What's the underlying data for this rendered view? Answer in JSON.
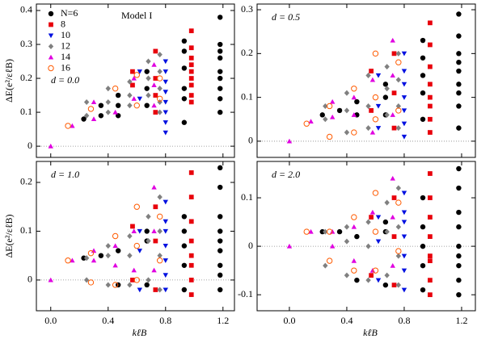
{
  "chart_data": [
    {
      "type": "scatter",
      "title": "Model I",
      "panel_label": "d = 0.0",
      "y_label": "ΔE(e²/εℓB)",
      "legend": "upper left",
      "zero_line": true,
      "show_xtick_labels": false,
      "xlim": [
        -0.1,
        1.28
      ],
      "ylim": [
        -0.033,
        0.419
      ],
      "xticks": [
        0,
        0.4,
        0.8,
        1.2
      ],
      "yticks": [
        0,
        0.1,
        0.2,
        0.3,
        0.4
      ],
      "series": [
        {
          "name": "N=6",
          "color": "#000000",
          "marker": "circle",
          "x": [
            0.23,
            0.35,
            0.35,
            0.47,
            0.47,
            0.47,
            0.67,
            0.67,
            0.67,
            0.93,
            0.93,
            0.93,
            0.93,
            0.93,
            0.93,
            1.18,
            1.18,
            1.18,
            1.18,
            1.18,
            1.18,
            1.18,
            1.18,
            1.18
          ],
          "values": [
            0.08,
            0.12,
            0.09,
            0.15,
            0.12,
            0.09,
            0.22,
            0.17,
            0.12,
            0.31,
            0.28,
            0.23,
            0.17,
            0.14,
            0.07,
            0.38,
            0.3,
            0.28,
            0.26,
            0.22,
            0.2,
            0.17,
            0.14,
            0.1
          ]
        },
        {
          "name": "8",
          "color": "#e8000b",
          "marker": "square",
          "x": [
            0.57,
            0.57,
            0.73,
            0.73,
            0.73,
            0.73,
            0.98,
            0.98,
            0.98,
            0.98,
            0.98,
            0.98,
            0.98,
            0.98,
            0.98
          ],
          "values": [
            0.22,
            0.18,
            0.28,
            0.2,
            0.15,
            0.1,
            0.34,
            0.29,
            0.26,
            0.24,
            0.22,
            0.2,
            0.18,
            0.15,
            0.13
          ]
        },
        {
          "name": "10",
          "color": "#0010e0",
          "marker": "triangle-down",
          "x": [
            0.62,
            0.62,
            0.8,
            0.8,
            0.8,
            0.8,
            0.8,
            0.8,
            0.8,
            0.8
          ],
          "values": [
            0.22,
            0.14,
            0.25,
            0.22,
            0.19,
            0.16,
            0.13,
            0.1,
            0.07,
            0.04
          ]
        },
        {
          "name": "12",
          "color": "#808080",
          "marker": "diamond",
          "x": [
            0.25,
            0.25,
            0.4,
            0.4,
            0.4,
            0.55,
            0.55,
            0.55,
            0.68,
            0.68,
            0.68,
            0.76,
            0.76,
            0.76,
            0.76,
            0.76
          ],
          "values": [
            0.13,
            0.09,
            0.17,
            0.13,
            0.1,
            0.19,
            0.15,
            0.12,
            0.25,
            0.2,
            0.15,
            0.27,
            0.22,
            0.17,
            0.13,
            0.1
          ]
        },
        {
          "name": "14",
          "color": "#e000e0",
          "marker": "triangle-up",
          "x": [
            0,
            0.15,
            0.3,
            0.3,
            0.45,
            0.58,
            0.58,
            0.72,
            0.72,
            0.72
          ],
          "values": [
            0,
            0.06,
            0.13,
            0.08,
            0.1,
            0.2,
            0.14,
            0.24,
            0.18,
            0.12
          ]
        },
        {
          "name": "16",
          "color": "#ff5a00",
          "marker": "open-circle",
          "x": [
            0.12,
            0.28,
            0.45,
            0.6,
            0.6,
            0.76,
            0.76
          ],
          "values": [
            0.06,
            0.11,
            0.17,
            0.21,
            0.12,
            0.2,
            0.14
          ]
        }
      ]
    },
    {
      "type": "scatter",
      "panel_label": "d = 0.5",
      "zero_line": true,
      "show_xtick_labels": false,
      "xlim": [
        -0.225,
        1.296
      ],
      "ylim": [
        -0.037,
        0.313
      ],
      "xticks": [
        0,
        0.4,
        0.8,
        1.2
      ],
      "yticks": [
        0,
        0.1,
        0.2,
        0.3
      ],
      "series": [
        {
          "color": "#000000",
          "marker": "circle",
          "x": [
            0.23,
            0.35,
            0.47,
            0.47,
            0.67,
            0.67,
            0.67,
            0.93,
            0.93,
            0.93,
            0.93,
            0.93,
            1.18,
            1.18,
            1.18,
            1.18,
            1.18,
            1.18,
            1.18,
            1.18,
            1.18
          ],
          "values": [
            0.06,
            0.07,
            0.09,
            0.06,
            0.13,
            0.1,
            0.06,
            0.23,
            0.19,
            0.15,
            0.11,
            0.05,
            0.29,
            0.24,
            0.2,
            0.18,
            0.16,
            0.13,
            0.11,
            0.08,
            0.03
          ]
        },
        {
          "color": "#e8000b",
          "marker": "square",
          "x": [
            0.57,
            0.57,
            0.73,
            0.73,
            0.73,
            0.98,
            0.98,
            0.98,
            0.98,
            0.98,
            0.98,
            0.98,
            0.98
          ],
          "values": [
            0.16,
            0.07,
            0.2,
            0.11,
            0.03,
            0.27,
            0.22,
            0.17,
            0.13,
            0.1,
            0.08,
            0.05,
            0.02
          ]
        },
        {
          "color": "#0010e0",
          "marker": "triangle-down",
          "x": [
            0.62,
            0.62,
            0.62,
            0.8,
            0.8,
            0.8,
            0.8,
            0.8,
            0.8,
            0.8
          ],
          "values": [
            0.15,
            0.08,
            0.03,
            0.2,
            0.16,
            0.13,
            0.1,
            0.07,
            0.04,
            0.01
          ]
        },
        {
          "color": "#808080",
          "marker": "diamond",
          "x": [
            0.25,
            0.25,
            0.4,
            0.4,
            0.4,
            0.55,
            0.55,
            0.55,
            0.68,
            0.68,
            0.68,
            0.76,
            0.76,
            0.76,
            0.76
          ],
          "values": [
            0.08,
            0.05,
            0.11,
            0.07,
            0.02,
            0.15,
            0.08,
            0.03,
            0.17,
            0.12,
            0.06,
            0.2,
            0.14,
            0.08,
            0.03
          ]
        },
        {
          "color": "#e000e0",
          "marker": "triangle-up",
          "x": [
            0,
            0.15,
            0.3,
            0.3,
            0.45,
            0.45,
            0.58,
            0.58,
            0.72,
            0.72,
            0.72
          ],
          "values": [
            0,
            0.045,
            0.09,
            0.055,
            0.1,
            0.06,
            0.14,
            0.02,
            0.23,
            0.15,
            0.06
          ]
        },
        {
          "color": "#ff5a00",
          "marker": "open-circle",
          "x": [
            0.12,
            0.28,
            0.28,
            0.45,
            0.45,
            0.6,
            0.6,
            0.6,
            0.76,
            0.76
          ],
          "values": [
            0.04,
            0.08,
            0.01,
            0.12,
            0.02,
            0.2,
            0.1,
            0.05,
            0.18,
            0.07
          ]
        }
      ]
    },
    {
      "type": "scatter",
      "panel_label": "d = 1.0",
      "y_label": "ΔE(e²/εℓB)",
      "x_label": "kℓB",
      "zero_line": true,
      "show_xtick_labels": true,
      "xlim": [
        -0.1,
        1.28
      ],
      "ylim": [
        -0.063,
        0.243
      ],
      "xticks": [
        {
          "value": 0,
          "label": "0.0"
        },
        0.4,
        0.8,
        1.2
      ],
      "yticks": [
        0,
        0.1,
        0.2
      ],
      "series": [
        {
          "color": "#000000",
          "marker": "circle",
          "x": [
            0.23,
            0.35,
            0.47,
            0.47,
            0.67,
            0.67,
            0.67,
            0.93,
            0.93,
            0.93,
            0.93,
            0.93,
            1.18,
            1.18,
            1.18,
            1.18,
            1.18,
            1.18,
            1.18,
            1.18,
            1.18
          ],
          "values": [
            0.045,
            0.05,
            0.06,
            -0.01,
            0.1,
            0.08,
            -0.01,
            0.13,
            0.1,
            0.07,
            0.03,
            -0.02,
            0.23,
            0.19,
            0.13,
            0.1,
            0.08,
            0.06,
            0.03,
            0.01,
            -0.02
          ]
        },
        {
          "color": "#e8000b",
          "marker": "square",
          "x": [
            0.57,
            0.57,
            0.73,
            0.73,
            0.73,
            0.98,
            0.98,
            0.98,
            0.98,
            0.98,
            0.98,
            0.98,
            0.98
          ],
          "values": [
            0.11,
            0,
            0.15,
            0.08,
            -0.02,
            0.22,
            0.17,
            0.12,
            0.08,
            0.05,
            0.03,
            0,
            -0.03
          ]
        },
        {
          "color": "#0010e0",
          "marker": "triangle-down",
          "x": [
            0.62,
            0.62,
            0.62,
            0.8,
            0.8,
            0.8,
            0.8,
            0.8,
            0.8,
            0.8
          ],
          "values": [
            0.1,
            0.06,
            -0.02,
            0.16,
            0.12,
            0.1,
            0.07,
            0.04,
            0.01,
            -0.02
          ]
        },
        {
          "color": "#808080",
          "marker": "diamond",
          "x": [
            0.25,
            0.25,
            0.4,
            0.4,
            0.4,
            0.55,
            0.55,
            0.55,
            0.68,
            0.68,
            0.68,
            0.76,
            0.76,
            0.76,
            0.76
          ],
          "values": [
            0.045,
            0,
            0.07,
            0.05,
            -0.01,
            0.09,
            0.05,
            -0.01,
            0.13,
            0.08,
            0,
            0.17,
            0.1,
            0.05,
            -0.02
          ]
        },
        {
          "color": "#e000e0",
          "marker": "triangle-up",
          "x": [
            0,
            0.15,
            0.3,
            0.3,
            0.45,
            0.45,
            0.58,
            0.58,
            0.72,
            0.72,
            0.72
          ],
          "values": [
            0,
            0.04,
            0.06,
            0.04,
            0.07,
            0.03,
            0.1,
            0.02,
            0.19,
            0.1,
            0.02
          ]
        },
        {
          "color": "#ff5a00",
          "marker": "open-circle",
          "x": [
            0.12,
            0.28,
            0.28,
            0.45,
            0.45,
            0.6,
            0.6,
            0.6,
            0.76,
            0.76
          ],
          "values": [
            0.04,
            0.055,
            -0.005,
            0.09,
            -0.01,
            0.15,
            0.07,
            0,
            0.13,
            0.04
          ]
        }
      ]
    },
    {
      "type": "scatter",
      "panel_label": "d = 2.0",
      "x_label": "kℓB",
      "zero_line": true,
      "show_xtick_labels": true,
      "xlim": [
        -0.225,
        1.296
      ],
      "ylim": [
        -0.133,
        0.175
      ],
      "xticks": [
        {
          "value": 0,
          "label": "0.0"
        },
        0.4,
        0.8,
        1.2
      ],
      "yticks": [
        -0.1,
        0,
        0.1
      ],
      "series": [
        {
          "color": "#000000",
          "marker": "circle",
          "x": [
            0.23,
            0.35,
            0.47,
            0.47,
            0.67,
            0.67,
            0.67,
            0.93,
            0.93,
            0.93,
            0.93,
            0.93,
            1.18,
            1.18,
            1.18,
            1.18,
            1.18,
            1.18,
            1.18,
            1.18,
            1.18
          ],
          "values": [
            0.03,
            0.03,
            0.02,
            -0.07,
            0.05,
            0.03,
            -0.08,
            0.1,
            0.04,
            0,
            -0.04,
            -0.09,
            0.16,
            0.12,
            0.07,
            0.04,
            0,
            -0.02,
            -0.04,
            -0.07,
            -0.1
          ]
        },
        {
          "color": "#e8000b",
          "marker": "square",
          "x": [
            0.57,
            0.57,
            0.73,
            0.73,
            0.73,
            0.98,
            0.98,
            0.98,
            0.98,
            0.98,
            0.98,
            0.98,
            0.98
          ],
          "values": [
            0.06,
            -0.06,
            0.1,
            0.02,
            -0.08,
            0.15,
            0.1,
            0.06,
            0.02,
            -0.02,
            -0.03,
            -0.07,
            -0.1
          ]
        },
        {
          "color": "#0010e0",
          "marker": "triangle-down",
          "x": [
            0.62,
            0.62,
            0.62,
            0.8,
            0.8,
            0.8,
            0.8,
            0.8,
            0.8,
            0.8
          ],
          "values": [
            0.06,
            0.01,
            -0.07,
            0.11,
            0.07,
            0.05,
            0.02,
            -0.02,
            -0.05,
            -0.09
          ]
        },
        {
          "color": "#808080",
          "marker": "diamond",
          "x": [
            0.25,
            0.25,
            0.4,
            0.4,
            0.4,
            0.55,
            0.55,
            0.55,
            0.68,
            0.68,
            0.68,
            0.76,
            0.76,
            0.76,
            0.76
          ],
          "values": [
            0.03,
            -0.04,
            0.04,
            0.01,
            -0.06,
            0.05,
            0,
            -0.07,
            0.09,
            0.03,
            -0.06,
            0.12,
            0.04,
            -0.02,
            -0.08
          ]
        },
        {
          "color": "#e000e0",
          "marker": "triangle-up",
          "x": [
            0,
            0.15,
            0.3,
            0.3,
            0.45,
            0.45,
            0.58,
            0.58,
            0.72,
            0.72,
            0.72
          ],
          "values": [
            0,
            0.03,
            0.03,
            0,
            0.04,
            -0.03,
            0.07,
            -0.05,
            0.14,
            0.06,
            -0.04
          ]
        },
        {
          "color": "#ff5a00",
          "marker": "open-circle",
          "x": [
            0.12,
            0.28,
            0.28,
            0.45,
            0.45,
            0.6,
            0.6,
            0.6,
            0.76,
            0.76
          ],
          "values": [
            0.03,
            0.03,
            -0.03,
            0.06,
            -0.05,
            0.11,
            0.03,
            -0.05,
            0.09,
            -0.01
          ]
        }
      ]
    }
  ]
}
